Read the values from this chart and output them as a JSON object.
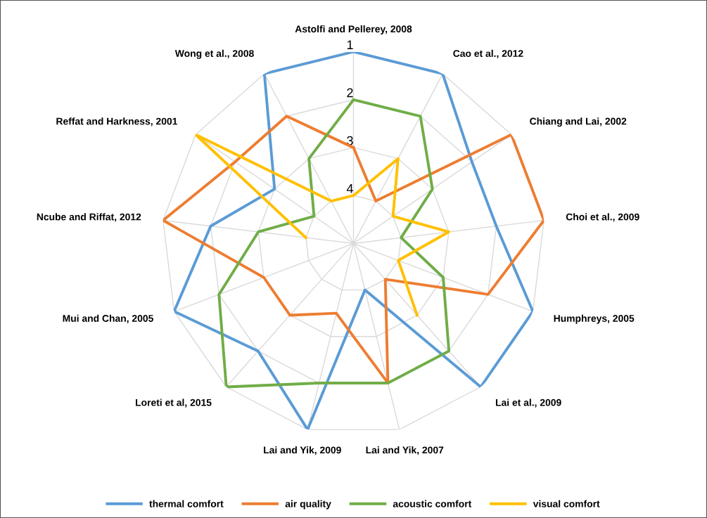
{
  "chart_data": {
    "type": "radar",
    "categories": [
      "Astolfi and Pellerey, 2008",
      "Cao et al., 2012",
      "Chiang and Lai, 2002",
      "Choi et al., 2009",
      "Humphreys, 2005",
      "Lai et al., 2009",
      "Lai and Yik, 2007",
      "Lai and Yik, 2009",
      "Loreti et al, 2015",
      "Mui and Chan, 2005",
      "Ncube and Riffat, 2012",
      "Reffat and Harkness, 2001",
      "Wong et al., 2008"
    ],
    "series": [
      {
        "name": "thermal comfort",
        "color": "#5b9bd5",
        "values": [
          1,
          1,
          2,
          2,
          1,
          1,
          4,
          1,
          2,
          1,
          2,
          3,
          1
        ]
      },
      {
        "name": "air quality",
        "color": "#ed7d31",
        "values": [
          3,
          4,
          1,
          1,
          2,
          4,
          2,
          3.5,
          3,
          3,
          1,
          2,
          2
        ]
      },
      {
        "name": "acoustic comfort",
        "color": "#70ad47",
        "values": [
          2,
          2,
          3,
          4,
          3,
          2,
          2,
          2,
          1,
          2,
          3,
          4,
          3
        ]
      },
      {
        "name": "visual comfort",
        "color": "#ffc000",
        "values": [
          4,
          3,
          4,
          3,
          4,
          3,
          null,
          null,
          null,
          null,
          4,
          1,
          4
        ]
      }
    ],
    "ylim": [
      5,
      1
    ],
    "yticks": [
      1,
      2,
      3,
      4
    ],
    "grid": true,
    "legend": "bottom",
    "marker": "none",
    "line_style": "solid"
  }
}
